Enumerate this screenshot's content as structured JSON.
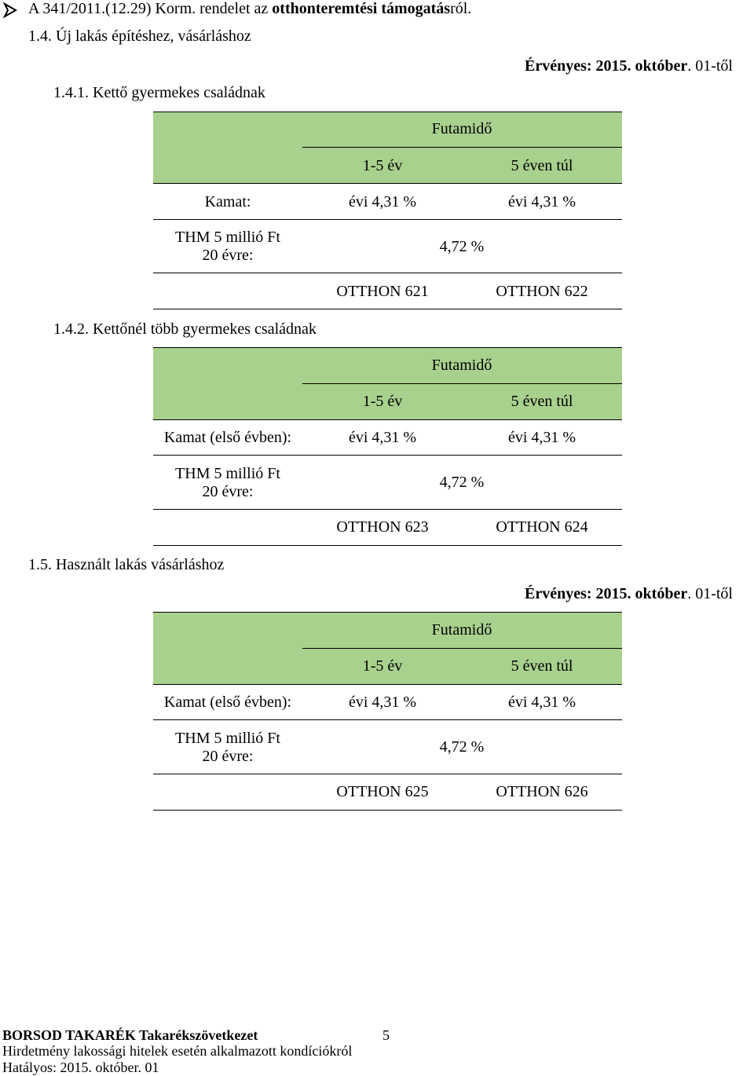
{
  "header": {
    "title_prefix": "A 341/2011.(12.29) Korm. rendelet az ",
    "title_bold": "otthonteremtési támogatás",
    "title_suffix": "ról."
  },
  "section_1_4": {
    "heading": "1.4.  Új lakás építéshez, vásárláshoz",
    "validity_bold": "Érvényes: 2015. október",
    "validity_rest": ". 01-től"
  },
  "section_1_4_1": {
    "heading": "1.4.1.  Kettő gyermekes családnak",
    "table": {
      "futamido": "Futamidő",
      "col1": "1-5 év",
      "col2": "5 éven túl",
      "kamat_label": "Kamat:",
      "kamat1": "évi 4,31 %",
      "kamat2": "évi 4,31 %",
      "thm_label_1": "THM 5 millió Ft",
      "thm_label_2": "20 évre:",
      "thm": "4,72 %",
      "code1": "OTTHON 621",
      "code2": "OTTHON 622"
    }
  },
  "section_1_4_2": {
    "heading": "1.4.2.  Kettőnél több gyermekes családnak",
    "table": {
      "futamido": "Futamidő",
      "col1": "1-5 év",
      "col2": "5 éven túl",
      "kamat_label": "Kamat (első évben):",
      "kamat1": "évi 4,31 %",
      "kamat2": "évi 4,31 %",
      "thm_label_1": "THM 5 millió Ft",
      "thm_label_2": "20 évre:",
      "thm": "4,72 %",
      "code1": "OTTHON 623",
      "code2": "OTTHON 624"
    }
  },
  "section_1_5": {
    "heading": "1.5. Használt lakás vásárláshoz",
    "validity_bold": "Érvényes: 2015. október",
    "validity_rest": ". 01-től",
    "table": {
      "futamido": "Futamidő",
      "col1": "1-5 év",
      "col2": "5 éven túl",
      "kamat_label": "Kamat (első évben):",
      "kamat1": "évi 4,31 %",
      "kamat2": "évi 4,31 %",
      "thm_label_1": "THM 5 millió Ft",
      "thm_label_2": "20 évre:",
      "thm": "4,72 %",
      "code1": "OTTHON 625",
      "code2": "OTTHON 626"
    }
  },
  "footer": {
    "bank": "BORSOD TAKARÉK Takarékszövetkezet",
    "page_number": "5",
    "line2": "Hirdetmény lakossági hitelek esetén alkalmazott kondíciókról",
    "line3": "Hatályos: 2015. október. 01"
  },
  "colors": {
    "header_green": "#a9d18e"
  }
}
